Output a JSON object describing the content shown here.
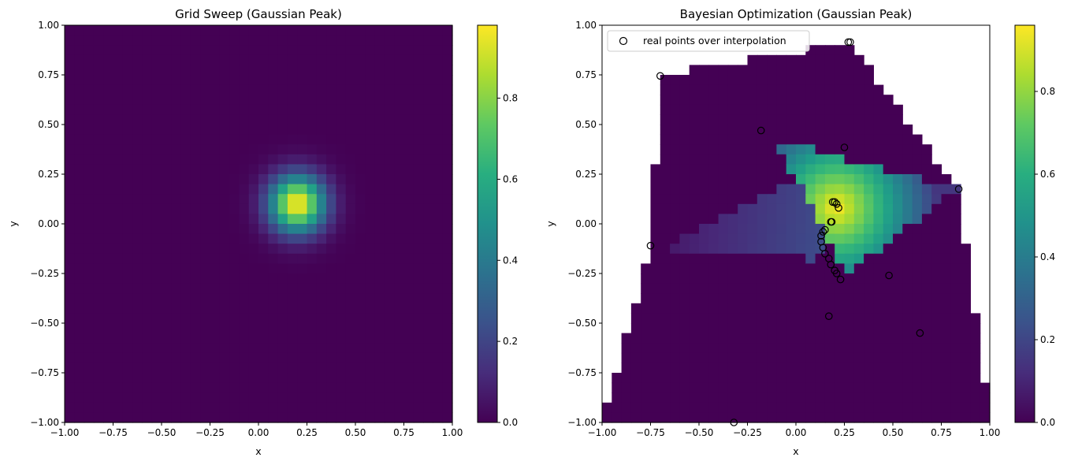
{
  "chart_data": [
    {
      "type": "heatmap",
      "title": "Grid Sweep (Gaussian Peak)",
      "xlabel": "x",
      "ylabel": "y",
      "xlim": [
        -1,
        1
      ],
      "ylim": [
        -1,
        1
      ],
      "xticks": [
        "−1.00",
        "−0.75",
        "−0.50",
        "−0.25",
        "0.00",
        "0.25",
        "0.50",
        "0.75",
        "1.00"
      ],
      "yticks": [
        "−1.00",
        "−0.75",
        "−0.50",
        "−0.25",
        "0.00",
        "0.25",
        "0.50",
        "0.75",
        "1.00"
      ],
      "colormap": "viridis",
      "grid_resolution": 40,
      "field": {
        "kind": "gaussian",
        "center": [
          0.2,
          0.1
        ],
        "sigma": 0.1,
        "peak": 0.98
      },
      "colorbar": {
        "range": [
          0,
          0.98
        ],
        "ticks": [
          "0.0",
          "0.2",
          "0.4",
          "0.6",
          "0.8"
        ]
      }
    },
    {
      "type": "heatmap",
      "title": "Bayesian Optimization (Gaussian Peak)",
      "xlabel": "x",
      "ylabel": "y",
      "xlim": [
        -1,
        1
      ],
      "ylim": [
        -1,
        1
      ],
      "xticks": [
        "−1.00",
        "−0.75",
        "−0.50",
        "−0.25",
        "0.00",
        "0.25",
        "0.50",
        "0.75",
        "1.00"
      ],
      "yticks": [
        "−1.00",
        "−0.75",
        "−0.50",
        "−0.25",
        "0.00",
        "0.25",
        "0.50",
        "0.75",
        "1.00"
      ],
      "colormap": "viridis",
      "grid_resolution": 40,
      "field": {
        "kind": "linear-interpolation-of-samples",
        "peak": 0.96
      },
      "colorbar": {
        "range": [
          0,
          0.96
        ],
        "ticks": [
          "0.0",
          "0.2",
          "0.4",
          "0.6",
          "0.8"
        ]
      },
      "legend": {
        "label": "real points over interpolation",
        "placement": "upper-left"
      },
      "points": [
        [
          -0.7,
          0.745
        ],
        [
          0.27,
          0.915
        ],
        [
          0.28,
          0.915
        ],
        [
          -0.18,
          0.47
        ],
        [
          0.25,
          0.385
        ],
        [
          0.84,
          0.175
        ],
        [
          0.19,
          0.11
        ],
        [
          0.2,
          0.11
        ],
        [
          0.21,
          0.1
        ],
        [
          0.22,
          0.08
        ],
        [
          0.18,
          0.01
        ],
        [
          0.185,
          0.01
        ],
        [
          0.15,
          -0.03
        ],
        [
          0.14,
          -0.04
        ],
        [
          0.13,
          -0.06
        ],
        [
          0.13,
          -0.09
        ],
        [
          0.14,
          -0.12
        ],
        [
          0.15,
          -0.15
        ],
        [
          0.17,
          -0.175
        ],
        [
          0.18,
          -0.205
        ],
        [
          0.2,
          -0.235
        ],
        [
          0.21,
          -0.25
        ],
        [
          0.23,
          -0.28
        ],
        [
          0.48,
          -0.26
        ],
        [
          -0.75,
          -0.11
        ],
        [
          0.17,
          -0.465
        ],
        [
          0.64,
          -0.55
        ],
        [
          -0.32,
          -1.0
        ]
      ]
    }
  ]
}
